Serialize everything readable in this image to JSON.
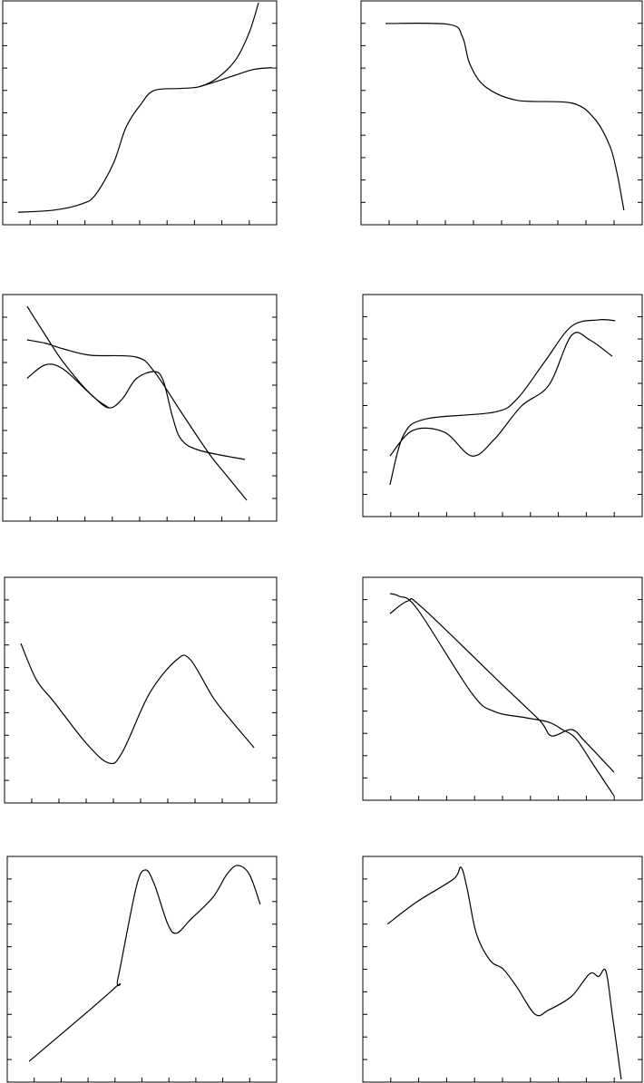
{
  "chart_data": [
    {
      "type": "line",
      "xlim": [
        0,
        100
      ],
      "ylim": [
        0,
        100
      ],
      "xticks": [
        10,
        20,
        30,
        40,
        50,
        60,
        70,
        80,
        90
      ],
      "yticks": [
        10,
        20,
        30,
        40,
        50,
        60,
        70,
        80,
        90
      ],
      "series": [
        {
          "color": "#000000",
          "x": [
            5.6,
            18.5,
            28.8,
            33.8,
            40.4,
            45,
            50.3,
            55.3,
            65.2,
            71.9,
            78.5,
            85.1,
            90,
            93.4
          ],
          "values": [
            5.6,
            6.5,
            9.3,
            13.3,
            27.4,
            43.5,
            53.6,
            60,
            60.9,
            61.7,
            65.7,
            73.8,
            85.9,
            99.2
          ]
        },
        {
          "color": "#000000",
          "x": [
            71.9,
            78.5,
            85.1,
            91.7,
            98.3
          ],
          "values": [
            61.7,
            64.2,
            66.9,
            69.4,
            70.2
          ]
        }
      ]
    },
    {
      "type": "line",
      "xlim": [
        0,
        100
      ],
      "ylim": [
        0,
        100
      ],
      "xticks": [
        10,
        20,
        30,
        40,
        50,
        60,
        70,
        80,
        90
      ],
      "yticks": [
        10,
        20,
        30,
        40,
        50,
        60,
        70,
        80,
        90
      ],
      "series": [
        {
          "color": "#000000",
          "x": [
            8.7,
            31.3,
            36.1,
            38.7,
            44.2,
            55.5,
            74.8,
            82.9,
            88.4,
            91,
            93.5
          ],
          "values": [
            89.9,
            89.5,
            83.9,
            71.8,
            61.7,
            55.6,
            54.4,
            47.6,
            35.5,
            23.4,
            6.5
          ]
        }
      ]
    },
    {
      "type": "line",
      "xlim": [
        0,
        100
      ],
      "ylim": [
        0,
        100
      ],
      "xticks": [
        10,
        20,
        30,
        40,
        50,
        60,
        70,
        80,
        90
      ],
      "yticks": [
        10,
        20,
        30,
        40,
        50,
        60,
        70,
        80,
        90
      ],
      "series": [
        {
          "color": "#000000",
          "x": [
            8.9,
            15.6,
            22.2,
            32.1,
            38.7
          ],
          "values": [
            94.8,
            82,
            70,
            56,
            50
          ]
        },
        {
          "color": "#000000",
          "x": [
            8.9,
            15.6,
            22.2,
            32.1,
            48.7,
            55.3,
            65.2,
            75.2,
            81.8,
            89.1
          ],
          "values": [
            80,
            78.5,
            76,
            73.2,
            72.4,
            66,
            48,
            30,
            20,
            9.2
          ]
        },
        {
          "color": "#000000",
          "x": [
            8.9,
            15.6,
            22.2,
            32.1,
            38.7,
            43.7,
            48.7,
            55.3,
            58.6,
            62,
            65.2,
            71.9,
            88.4
          ],
          "values": [
            63,
            69,
            67,
            56,
            50,
            54,
            62.8,
            66,
            62,
            46,
            36,
            31.2,
            27.2
          ]
        }
      ]
    },
    {
      "type": "line",
      "xlim": [
        0,
        100
      ],
      "ylim": [
        0,
        100
      ],
      "xticks": [
        10,
        20,
        30,
        40,
        50,
        60,
        70,
        80,
        90
      ],
      "yticks": [
        10,
        20,
        30,
        40,
        50,
        60,
        70,
        80,
        90
      ],
      "series": [
        {
          "color": "#000000",
          "x": [
            9.7,
            17.9,
            29.2,
            39,
            47,
            56.8,
            66.6,
            74.7,
            81.2,
            89.3
          ],
          "values": [
            27.3,
            38.8,
            38,
            27.3,
            34.7,
            49.8,
            59.2,
            81.6,
            79.6,
            72.2
          ]
        },
        {
          "color": "#000000",
          "x": [
            9.7,
            14.6,
            22.7,
            47,
            55.2,
            64.9,
            74.7,
            84.4,
            90.3
          ],
          "values": [
            14.3,
            36.7,
            44,
            47,
            53,
            69.4,
            85.7,
            88.6,
            88.2
          ]
        }
      ]
    },
    {
      "type": "line",
      "xlim": [
        0,
        100
      ],
      "ylim": [
        0,
        100
      ],
      "xticks": [
        10,
        20,
        30,
        40,
        50,
        60,
        70,
        80,
        90
      ],
      "yticks": [
        10,
        20,
        30,
        40,
        50,
        60,
        70,
        80,
        90
      ],
      "series": [
        {
          "color": "#000000",
          "x": [
            6,
            11.7,
            18.3,
            30,
            38.3,
            43.3,
            53.3,
            63.3,
            68.3,
            76.7,
            83.3,
            91.7
          ],
          "values": [
            70.7,
            54.6,
            44.6,
            26.5,
            17.7,
            22.5,
            48.6,
            63.5,
            63.5,
            46.6,
            36.5,
            24.5
          ]
        }
      ]
    },
    {
      "type": "line",
      "xlim": [
        0,
        100
      ],
      "ylim": [
        0,
        100
      ],
      "xticks": [
        10,
        20,
        30,
        40,
        50,
        60,
        70,
        80,
        90
      ],
      "yticks": [
        10,
        20,
        30,
        40,
        50,
        60,
        70,
        80,
        90
      ],
      "series": [
        {
          "color": "#000000",
          "x": [
            9.7,
            13,
            19.5,
            39,
            47.1,
            58.4,
            66.6,
            71.4,
            76.3,
            82.8,
            89.9
          ],
          "values": [
            92.7,
            91.5,
            85.8,
            48,
            39.8,
            37,
            35,
            31.7,
            27.6,
            15.4,
            2
          ]
        },
        {
          "color": "#000000",
          "x": [
            9.7,
            16.2,
            21.1,
            48.7,
            63.3,
            67.5,
            74.7,
            79.5,
            89.9
          ],
          "values": [
            83.7,
            89.4,
            86.6,
            53.3,
            35.8,
            28.9,
            31.7,
            26.4,
            12.6
          ]
        }
      ]
    },
    {
      "type": "line",
      "xlim": [
        0,
        100
      ],
      "ylim": [
        0,
        100
      ],
      "xticks": [
        10,
        20,
        30,
        40,
        50,
        60,
        70,
        80,
        90
      ],
      "yticks": [
        10,
        20,
        30,
        40,
        50,
        60,
        70,
        80,
        90
      ],
      "series": [
        {
          "color": "#000000",
          "x": [
            8.1,
            39.4,
            41.1,
            47.8,
            51.2,
            54.5,
            59.6,
            62.9,
            68,
            76.4,
            81.5,
            85.5,
            89.9,
            93.9
          ],
          "values": [
            9.2,
            41.2,
            46,
            86,
            94,
            88,
            70,
            66,
            72,
            82,
            92,
            96,
            92,
            78.8
          ]
        }
      ]
    },
    {
      "type": "line",
      "xlim": [
        0,
        100
      ],
      "ylim": [
        0,
        100
      ],
      "xticks": [
        10,
        20,
        30,
        40,
        50,
        60,
        70,
        80,
        90
      ],
      "yticks": [
        10,
        20,
        30,
        40,
        50,
        60,
        70,
        80,
        90
      ],
      "series": [
        {
          "color": "#000000",
          "x": [
            8.8,
            19.5,
            32.5,
            35.1,
            37.3,
            40.6,
            45.5,
            50.3,
            55.2,
            61.7,
            66.6,
            74.7,
            81.2,
            84.4,
            87,
            89.3,
            92.5
          ],
          "values": [
            70,
            80,
            90,
            95.2,
            86,
            66,
            54,
            50,
            42,
            30,
            32,
            38,
            48,
            46.8,
            49.2,
            30,
            1.2
          ]
        }
      ]
    }
  ]
}
